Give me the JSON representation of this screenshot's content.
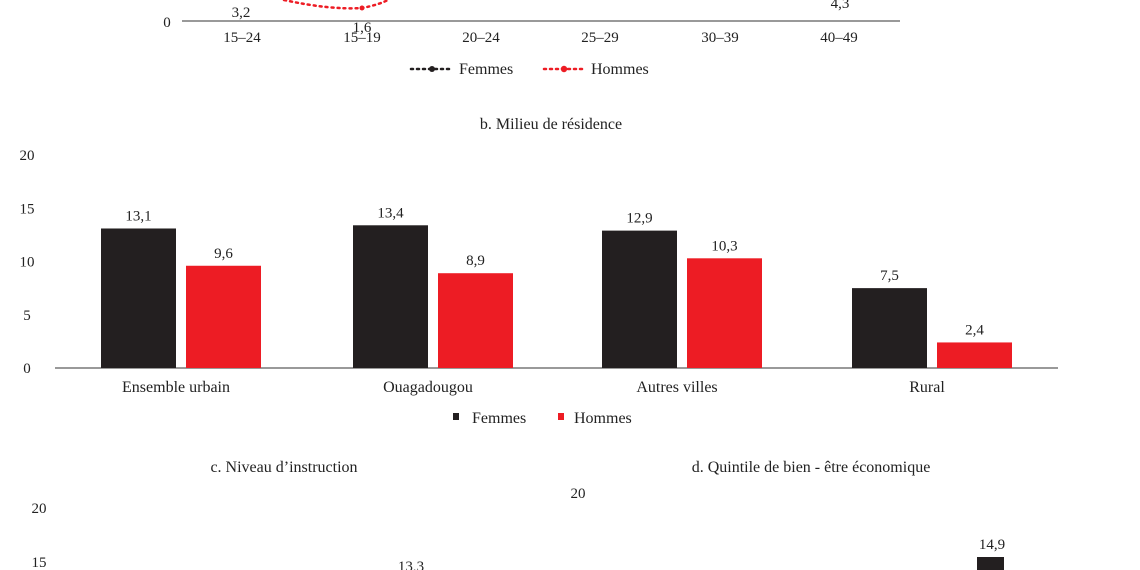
{
  "colors": {
    "femmes": "#231f20",
    "hommes": "#ed1c24",
    "axis": "#333333"
  },
  "legend": {
    "femmes": "Femmes",
    "hommes": "Hommes"
  },
  "chart_data": [
    {
      "id": "a",
      "type": "line",
      "title": "",
      "categories": [
        "15–24",
        "15–19",
        "20–24",
        "25–29",
        "30–39",
        "40–49"
      ],
      "ylim": [
        0,
        20
      ],
      "y_ticks_visible": [
        0
      ],
      "series": [
        {
          "name": "Femmes",
          "values": [
            null,
            null,
            null,
            null,
            null,
            null
          ]
        },
        {
          "name": "Hommes",
          "values": [
            null,
            1.6,
            null,
            null,
            null,
            null
          ]
        }
      ],
      "data_labels": [
        {
          "category": "15–24",
          "text": "3,2",
          "series": "Hommes"
        },
        {
          "category": "15–19",
          "text": "1,6",
          "series": "Hommes"
        },
        {
          "category": "40–49",
          "text": "4,3",
          "series": "Hommes"
        }
      ],
      "legend_placement": "bottom",
      "grid": false
    },
    {
      "id": "b",
      "type": "bar",
      "title": "b. Milieu de résidence",
      "categories": [
        "Ensemble urbain",
        "Ouagadougou",
        "Autres villes",
        "Rural"
      ],
      "ylim": [
        0,
        20
      ],
      "y_ticks": [
        0,
        5,
        10,
        15,
        20
      ],
      "series": [
        {
          "name": "Femmes",
          "values": [
            13.1,
            13.4,
            12.9,
            7.5
          ],
          "labels": [
            "13,1",
            "13,4",
            "12,9",
            "7,5"
          ]
        },
        {
          "name": "Hommes",
          "values": [
            9.6,
            8.9,
            10.3,
            2.4
          ],
          "labels": [
            "9,6",
            "8,9",
            "10,3",
            "2,4"
          ]
        }
      ],
      "legend_placement": "bottom",
      "grid": false
    },
    {
      "id": "c",
      "type": "bar",
      "title": "c. Niveau d’instruction",
      "ylim": [
        0,
        20
      ],
      "y_ticks_visible": [
        15,
        20
      ],
      "visible_labels": [
        "13,3"
      ],
      "grid": false
    },
    {
      "id": "d",
      "type": "bar",
      "title": "d. Quintile de bien - être économique",
      "ylim": [
        0,
        20
      ],
      "y_ticks_visible": [
        20
      ],
      "visible_labels": [
        "14,9"
      ],
      "grid": false
    }
  ]
}
